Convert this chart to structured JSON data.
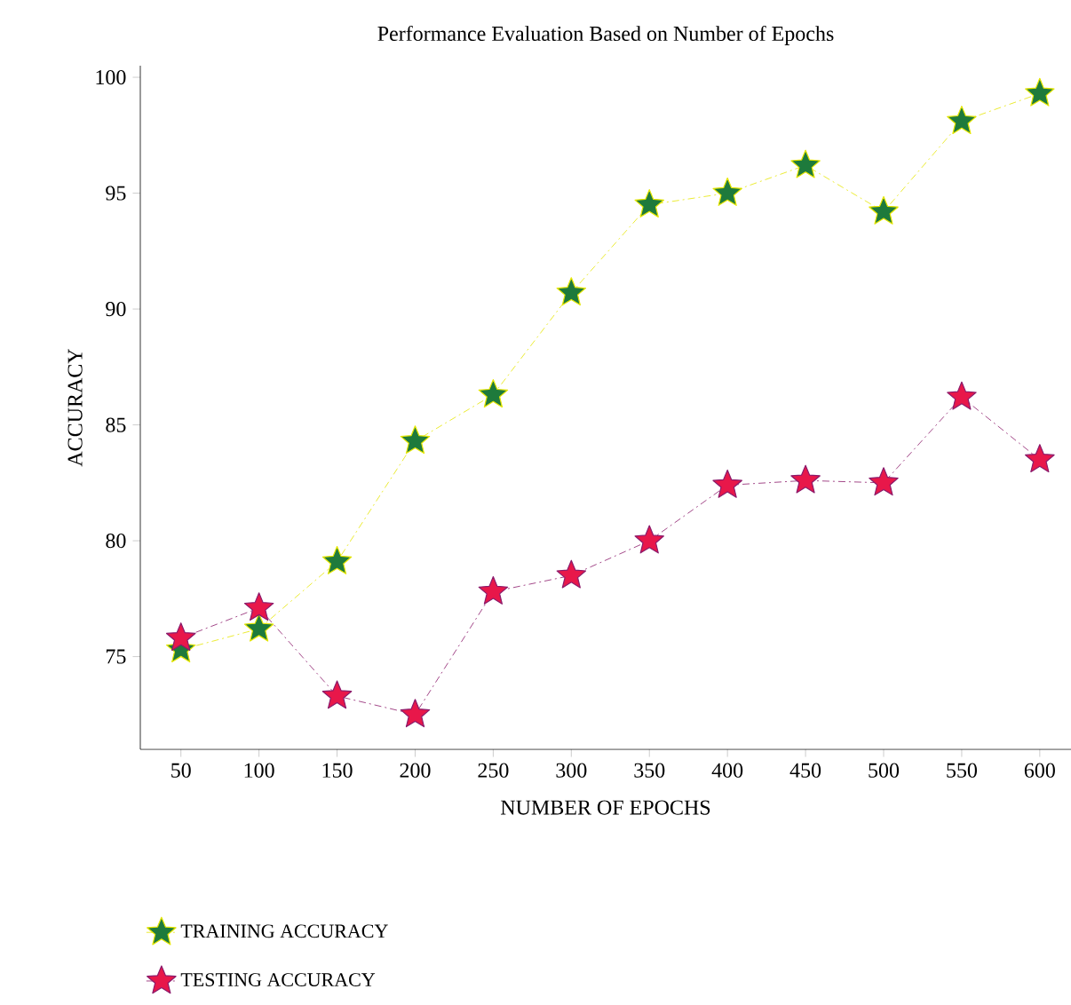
{
  "chart_data": {
    "type": "line",
    "title": "Performance Evaluation Based on Number of Epochs",
    "xlabel": "NUMBER OF EPOCHS",
    "ylabel": "ACCURACY",
    "x": [
      50,
      100,
      150,
      200,
      250,
      300,
      350,
      400,
      450,
      500,
      550,
      600
    ],
    "series": [
      {
        "name": "TRAINING ACCURACY",
        "color": "#e6e600",
        "colors": [
          "#1e7a3c",
          "#1e7a3c",
          "#1e7a3c",
          "#1e7a3c",
          "#1e7a3c",
          "#1e7a3c",
          "#1e7a3c",
          "#1e7a3c",
          "#1e7a3c",
          "#1e7a3c",
          "#1e7a3c",
          "#1e7a3c"
        ],
        "values": [
          75.3,
          76.2,
          79.1,
          84.3,
          86.3,
          90.7,
          94.5,
          95.0,
          96.2,
          94.2,
          98.1,
          99.3
        ]
      },
      {
        "name": "TESTING ACCURACY",
        "color": "#8b1a6b",
        "colors": [
          "#e8174a",
          "#e8174a",
          "#e8174a",
          "#e8174a",
          "#e8174a",
          "#e8174a",
          "#e8174a",
          "#e8174a",
          "#e8174a",
          "#e8174a",
          "#e8174a",
          "#e8174a"
        ],
        "values": [
          75.8,
          77.1,
          73.3,
          72.5,
          77.8,
          78.5,
          80.0,
          82.4,
          82.6,
          82.5,
          86.2,
          83.5
        ]
      }
    ],
    "xlim": [
      24,
      620
    ],
    "xticks": [
      50,
      100,
      150,
      200,
      250,
      300,
      350,
      400,
      450,
      500,
      550,
      600
    ],
    "ylim": [
      71,
      100.5
    ],
    "yticks": [
      75,
      80,
      85,
      90,
      95,
      100
    ],
    "grid": false,
    "legend": "bottom left",
    "marker": "star",
    "line_style": "dashdot"
  }
}
